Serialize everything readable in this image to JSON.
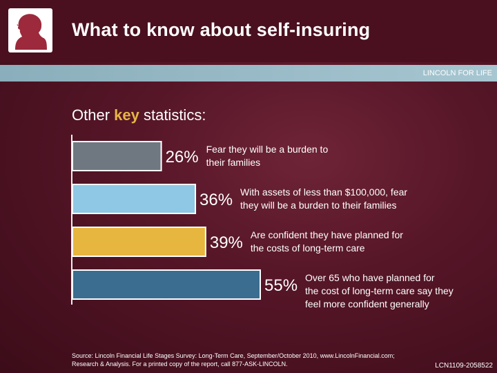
{
  "header": {
    "title": "What to know about self-insuring",
    "tagline": "LINCOLN FOR LIFE",
    "logo_icon": "lincoln-profile-icon"
  },
  "subtitle": {
    "before": "Other ",
    "highlight": "key",
    "after": " statistics:"
  },
  "colors": {
    "accent": "#e8b545",
    "background": "#561628"
  },
  "chart_data": {
    "type": "bar",
    "orientation": "horizontal",
    "values": [
      26,
      36,
      39,
      55
    ],
    "value_labels": [
      "26%",
      "36%",
      "39%",
      "55%"
    ],
    "descriptions": [
      [
        "Fear they will be a burden to",
        "their families"
      ],
      [
        "With assets of less than $100,000, fear",
        "they will be a burden to their families"
      ],
      [
        "Are confident they have planned for",
        "the costs of long-term care"
      ],
      [
        "Over 65 who have planned for",
        "the cost of long-term care say they",
        "feel more confident generally"
      ]
    ],
    "bar_colors": [
      "#6f7880",
      "#8ec8e4",
      "#e7b63e",
      "#3a6d8f"
    ],
    "xlim": [
      0,
      55
    ],
    "grid": false
  },
  "footer": {
    "source_line1": "Source: Lincoln Financial Life Stages Survey: Long-Term Care, September/October 2010, www.LincolnFinancial.com;",
    "source_line2": "Research & Analysis. For a printed copy of the report, call 877-ASK-LINCOLN.",
    "code": "LCN1109-2058522"
  }
}
